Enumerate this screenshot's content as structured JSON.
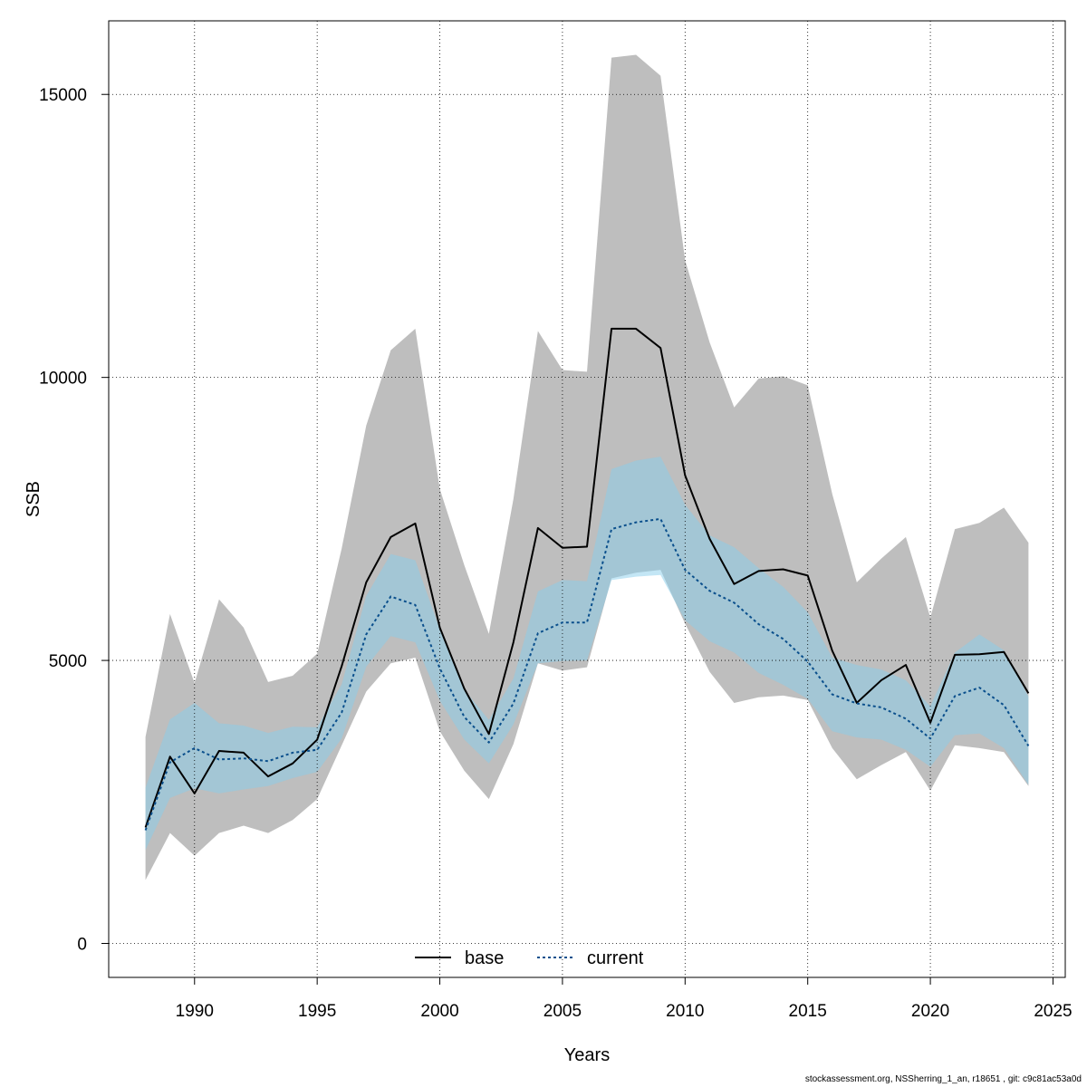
{
  "chart_data": {
    "type": "line",
    "xlabel": "Years",
    "ylabel": "SSB",
    "xlim": [
      1986.5,
      2025.5
    ],
    "ylim": [
      -600,
      16300
    ],
    "x_ticks": [
      1990,
      1995,
      2000,
      2005,
      2010,
      2015,
      2020,
      2025
    ],
    "y_ticks": [
      0,
      5000,
      10000,
      15000
    ],
    "grid": true,
    "legend_position": "bottom-center",
    "x": [
      1988,
      1989,
      1990,
      1991,
      1992,
      1993,
      1994,
      1995,
      1996,
      1997,
      1998,
      1999,
      2000,
      2001,
      2002,
      2003,
      2004,
      2005,
      2006,
      2007,
      2008,
      2009,
      2010,
      2011,
      2012,
      2013,
      2014,
      2015,
      2016,
      2017,
      2018,
      2019,
      2020,
      2021,
      2022,
      2023,
      2024
    ],
    "series": [
      {
        "name": "base",
        "color": "#000000",
        "dash": "solid",
        "band_color": "#bebebe",
        "values": [
          2050,
          3300,
          2650,
          3400,
          3370,
          2950,
          3180,
          3600,
          4900,
          6380,
          7180,
          7420,
          5580,
          4500,
          3700,
          5320,
          7340,
          6990,
          7010,
          10860,
          10860,
          10520,
          8270,
          7150,
          6350,
          6580,
          6610,
          6500,
          5170,
          4250,
          4650,
          4920,
          3900,
          5100,
          5110,
          5150,
          4420
        ],
        "lower": [
          1120,
          1950,
          1550,
          1950,
          2080,
          1950,
          2180,
          2550,
          3500,
          4450,
          4950,
          5050,
          3750,
          3050,
          2550,
          3520,
          4950,
          4820,
          4880,
          6450,
          6550,
          6600,
          5650,
          4800,
          4250,
          4350,
          4380,
          4300,
          3450,
          2900,
          3150,
          3380,
          2700,
          3500,
          3450,
          3380,
          2780
        ],
        "upper": [
          3650,
          5820,
          4600,
          6080,
          5580,
          4620,
          4730,
          5120,
          6980,
          9150,
          10480,
          10860,
          8030,
          6680,
          5470,
          7850,
          10820,
          10130,
          10100,
          15650,
          15700,
          15330,
          12070,
          10620,
          9470,
          9980,
          10020,
          9860,
          7940,
          6380,
          6800,
          7180,
          5760,
          7320,
          7430,
          7700,
          7080
        ]
      },
      {
        "name": "current",
        "color": "#0a4f8c",
        "dash": "dotted",
        "band_color": "#87ceeb",
        "values": [
          2000,
          3200,
          3450,
          3250,
          3270,
          3220,
          3370,
          3420,
          4080,
          5460,
          6130,
          5980,
          4860,
          4000,
          3550,
          4240,
          5480,
          5670,
          5670,
          7320,
          7440,
          7500,
          6600,
          6230,
          6020,
          5640,
          5380,
          4980,
          4400,
          4240,
          4170,
          3970,
          3620,
          4370,
          4520,
          4210,
          3490
        ],
        "lower": [
          1650,
          2570,
          2740,
          2650,
          2720,
          2780,
          2920,
          3030,
          3620,
          4890,
          5430,
          5320,
          4290,
          3600,
          3180,
          3870,
          4950,
          4990,
          5000,
          6420,
          6480,
          6510,
          5710,
          5340,
          5140,
          4780,
          4570,
          4320,
          3750,
          3640,
          3600,
          3420,
          3120,
          3680,
          3710,
          3450,
          2800
        ],
        "upper": [
          2750,
          3960,
          4250,
          3890,
          3850,
          3720,
          3830,
          3820,
          4580,
          6140,
          6880,
          6770,
          5550,
          4480,
          3950,
          4680,
          6220,
          6420,
          6400,
          8380,
          8530,
          8600,
          7750,
          7210,
          7000,
          6630,
          6300,
          5850,
          5050,
          4920,
          4840,
          4650,
          4190,
          5140,
          5460,
          5180,
          4360
        ]
      }
    ]
  },
  "footer_text": "stockassessment.org, NSSherring_1_an, r18651 , git: c9c81ac53a0d"
}
